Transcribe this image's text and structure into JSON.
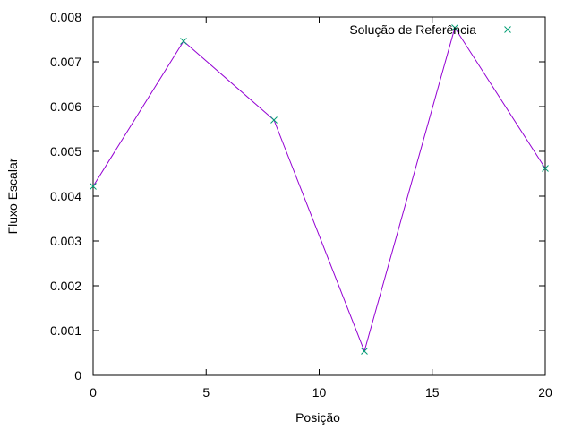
{
  "chart_data": {
    "type": "line",
    "title": "",
    "xlabel": "Posição",
    "ylabel": "Fluxo Escalar",
    "xlim": [
      0,
      20
    ],
    "ylim": [
      0,
      0.008
    ],
    "xticks": [
      0,
      5,
      10,
      15,
      20
    ],
    "xtick_labels": [
      "0",
      "5",
      "10",
      "15",
      "20"
    ],
    "yticks": [
      0,
      0.001,
      0.002,
      0.003,
      0.004,
      0.005,
      0.006,
      0.007,
      0.008
    ],
    "ytick_labels": [
      "0",
      "0.001",
      "0.002",
      "0.003",
      "0.004",
      "0.005",
      "0.006",
      "0.007",
      "0.008"
    ],
    "grid": false,
    "legend_position": "top-right",
    "series": [
      {
        "name": "",
        "style": "line",
        "color": "#9400d3",
        "x": [
          0,
          4,
          8,
          12,
          16,
          20
        ],
        "y": [
          0.00422,
          0.00746,
          0.0057,
          0.00054,
          0.00776,
          0.00462
        ]
      },
      {
        "name": "Solução de Referência",
        "style": "points",
        "marker": "x",
        "color": "#009e73",
        "x": [
          0,
          4,
          8,
          12,
          16,
          20
        ],
        "y": [
          0.00422,
          0.00746,
          0.0057,
          0.00054,
          0.00776,
          0.00462
        ]
      }
    ]
  }
}
